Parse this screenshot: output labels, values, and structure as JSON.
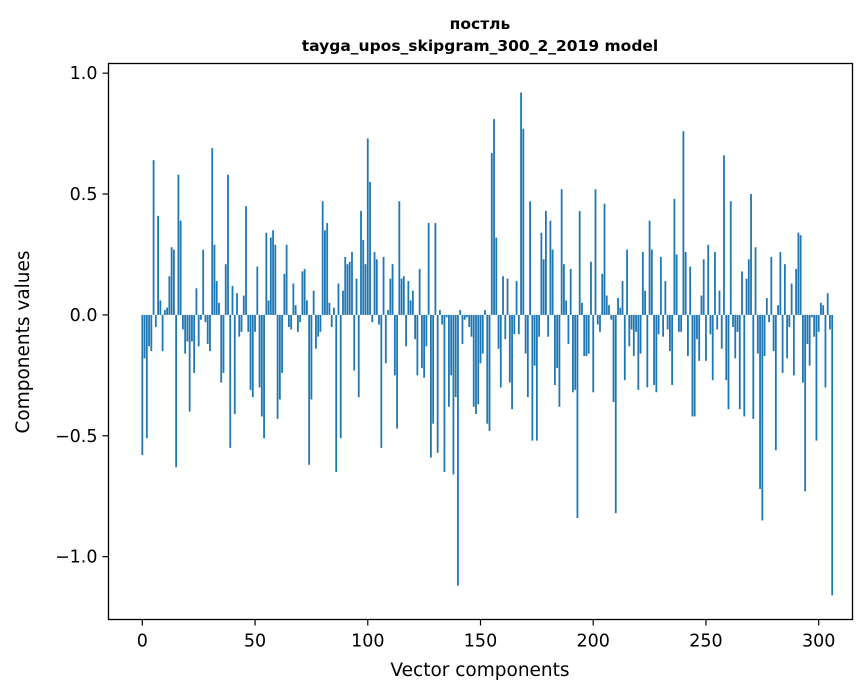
{
  "chart_data": {
    "type": "bar",
    "title_line1": "постль",
    "title_line2": "tayga_upos_skipgram_300_2_2019 model",
    "xlabel": "Vector components",
    "ylabel": "Components values",
    "xlim": [
      -15,
      315
    ],
    "ylim": [
      -1.26,
      1.04
    ],
    "x_ticks": [
      0,
      50,
      100,
      150,
      200,
      250,
      300
    ],
    "x_tick_labels": [
      "0",
      "50",
      "100",
      "150",
      "200",
      "250",
      "300"
    ],
    "y_ticks": [
      1.0,
      0.5,
      0.0,
      -0.5,
      -1.0
    ],
    "y_tick_labels": [
      "1.0",
      "0.5",
      "0.0",
      "−0.5",
      "−1.0"
    ],
    "bar_color": "#1f77b4",
    "values": [
      -0.58,
      -0.18,
      -0.51,
      -0.13,
      -0.15,
      0.64,
      -0.05,
      0.41,
      0.06,
      -0.15,
      0.02,
      0.03,
      0.16,
      0.28,
      0.27,
      -0.63,
      0.58,
      0.39,
      -0.06,
      -0.16,
      -0.11,
      -0.4,
      -0.11,
      -0.24,
      0.11,
      -0.13,
      -0.02,
      0.27,
      -0.03,
      -0.12,
      -0.15,
      0.69,
      0.29,
      0.14,
      0.05,
      -0.28,
      -0.24,
      0.21,
      0.58,
      -0.55,
      0.12,
      -0.41,
      0.09,
      -0.09,
      -0.07,
      0.08,
      0.45,
      -0.07,
      -0.31,
      -0.34,
      -0.07,
      0.2,
      -0.3,
      -0.42,
      -0.51,
      0.34,
      0.06,
      0.32,
      0.35,
      0.29,
      -0.43,
      -0.35,
      -0.24,
      0.17,
      0.29,
      -0.05,
      -0.06,
      0.13,
      0.04,
      -0.07,
      -0.03,
      0.18,
      0.19,
      0.06,
      -0.62,
      -0.35,
      0.1,
      -0.14,
      -0.09,
      -0.07,
      0.47,
      0.35,
      0.38,
      0.05,
      -0.05,
      0.03,
      -0.65,
      0.13,
      -0.51,
      0.1,
      0.24,
      0.21,
      0.22,
      0.26,
      -0.23,
      0.15,
      -0.34,
      0.43,
      0.31,
      0.21,
      0.73,
      0.55,
      -0.03,
      0.26,
      0.23,
      -0.04,
      -0.55,
      0.24,
      -0.2,
      0.02,
      0.15,
      0.21,
      -0.25,
      -0.47,
      0.47,
      0.15,
      0.16,
      -0.13,
      0.14,
      0.06,
      0.1,
      -0.1,
      -0.25,
      0.19,
      -0.22,
      -0.26,
      -0.13,
      0.38,
      -0.59,
      -0.45,
      0.38,
      -0.57,
      0.02,
      -0.04,
      -0.65,
      -0.01,
      -0.38,
      -0.25,
      -0.66,
      -0.34,
      -1.12,
      0.02,
      -0.12,
      -0.02,
      -0.01,
      -0.05,
      -0.09,
      -0.38,
      -0.41,
      -0.37,
      -0.2,
      -0.16,
      0.02,
      -0.45,
      -0.48,
      0.67,
      0.81,
      0.32,
      -0.14,
      -0.3,
      0.16,
      -0.1,
      0.15,
      -0.28,
      -0.39,
      -0.08,
      0.14,
      -0.08,
      0.92,
      0.77,
      -0.16,
      -0.34,
      0.47,
      -0.52,
      -0.21,
      -0.52,
      -0.09,
      0.34,
      0.23,
      0.43,
      -0.09,
      0.39,
      0.27,
      -0.29,
      -0.22,
      -0.38,
      0.52,
      0.21,
      0.06,
      -0.12,
      0.19,
      -0.32,
      -0.31,
      -0.84,
      0.43,
      0.05,
      -0.17,
      -0.17,
      -0.16,
      0.22,
      -0.32,
      0.52,
      -0.04,
      -0.07,
      0.17,
      0.46,
      0.08,
      0.04,
      -0.02,
      -0.36,
      -0.82,
      0.07,
      0.03,
      0.14,
      -0.27,
      0.27,
      -0.13,
      -0.06,
      -0.17,
      -0.07,
      -0.31,
      -0.16,
      0.26,
      0.1,
      -0.3,
      0.39,
      0.27,
      -0.29,
      -0.32,
      -0.08,
      0.24,
      -0.09,
      0.14,
      -0.06,
      -0.15,
      -0.29,
      0.48,
      0.25,
      -0.07,
      -0.07,
      0.76,
      0.26,
      -0.17,
      0.2,
      -0.42,
      -0.42,
      -0.1,
      -0.19,
      0.08,
      0.23,
      -0.19,
      0.29,
      -0.08,
      -0.27,
      0.26,
      -0.06,
      0.1,
      -0.14,
      0.66,
      -0.27,
      -0.39,
      0.47,
      -0.05,
      -0.18,
      -0.07,
      -0.39,
      0.18,
      -0.42,
      0.15,
      0.23,
      0.5,
      -0.43,
      0.28,
      -0.16,
      -0.72,
      -0.85,
      -0.17,
      0.07,
      -0.03,
      0.24,
      -0.15,
      -0.56,
      0.04,
      0.26,
      -0.24,
      0.21,
      -0.18,
      -0.05,
      0.13,
      -0.25,
      0.19,
      0.34,
      0.33,
      -0.28,
      -0.73,
      -0.12,
      -0.21,
      -0.01,
      -0.09,
      -0.52,
      -0.07,
      0.05,
      0.04,
      -0.3,
      0.09,
      -0.06,
      -1.16
    ]
  }
}
